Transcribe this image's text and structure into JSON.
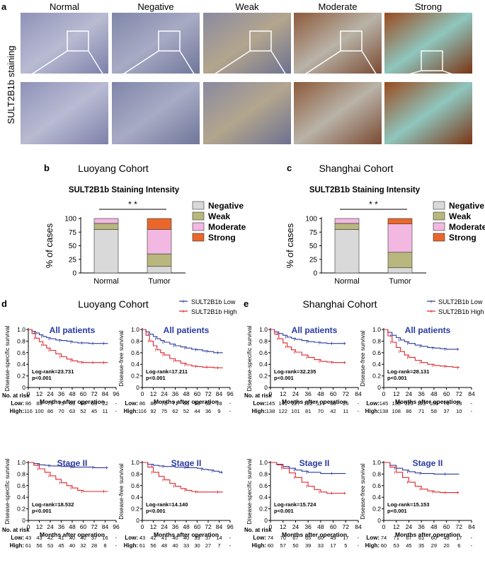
{
  "panel_a": {
    "letter": "a",
    "row_label": "SULT2B1b staining",
    "columns": [
      "Normal",
      "Negative",
      "Weak",
      "Moderate",
      "Strong"
    ]
  },
  "legend_km": {
    "low": "SULT2B1b Low",
    "high": "SULT2B1b High"
  },
  "colors": {
    "negative": "#d9d9d9",
    "weak": "#b8b77d",
    "moderate": "#f2b8e2",
    "strong": "#e9672a",
    "low_line": "#2b3a9c",
    "high_line": "#e0262b",
    "km_title": "#2a3aa0"
  },
  "chart_data": [
    {
      "id": "b",
      "letter": "b",
      "type": "bar",
      "stacked": true,
      "cohort": "Luoyang Cohort",
      "title": "SULT2B1b Staining Intensity",
      "ylabel": "% of cases",
      "xlabel": "",
      "ylim": [
        0,
        100
      ],
      "yticks": [
        "0",
        "25",
        "50",
        "75",
        "100"
      ],
      "categories": [
        "Normal",
        "Tumor"
      ],
      "significance": "* *",
      "series": [
        {
          "name": "Negative",
          "values": [
            80,
            12
          ]
        },
        {
          "name": "Weak",
          "values": [
            11,
            23
          ]
        },
        {
          "name": "Moderate",
          "values": [
            9,
            45
          ]
        },
        {
          "name": "Strong",
          "values": [
            0,
            20
          ]
        }
      ]
    },
    {
      "id": "c",
      "letter": "c",
      "type": "bar",
      "stacked": true,
      "cohort": "Shanghai Cohort",
      "title": "SULT2B1b Staining Intensity",
      "ylabel": "% of cases",
      "xlabel": "",
      "ylim": [
        0,
        100
      ],
      "yticks": [
        "0",
        "25",
        "50",
        "75",
        "100"
      ],
      "categories": [
        "Normal",
        "Tumor"
      ],
      "significance": "* *",
      "series": [
        {
          "name": "Negative",
          "values": [
            80,
            10
          ]
        },
        {
          "name": "Weak",
          "values": [
            11,
            28
          ]
        },
        {
          "name": "Moderate",
          "values": [
            9,
            52
          ]
        },
        {
          "name": "Strong",
          "values": [
            0,
            10
          ]
        }
      ]
    },
    {
      "id": "d1",
      "type": "line",
      "subtitle": "All patients",
      "ylabel": "Disease-specific survival",
      "xlabel": "Months after operation",
      "xticks": [
        0,
        12,
        24,
        36,
        48,
        60,
        72,
        84,
        96
      ],
      "yticks": [
        0,
        0.2,
        0.4,
        0.6,
        0.8,
        1.0
      ],
      "logrank": "Log-rank=23.731",
      "pvalue": "p<0.001",
      "series": [
        {
          "name": "SULT2B1b Low",
          "x": [
            0,
            4,
            8,
            12,
            16,
            20,
            24,
            30,
            36,
            42,
            48,
            54,
            60,
            66,
            72,
            78,
            84,
            87
          ],
          "y": [
            1.0,
            0.97,
            0.94,
            0.91,
            0.88,
            0.86,
            0.84,
            0.82,
            0.81,
            0.8,
            0.78,
            0.77,
            0.77,
            0.76,
            0.76,
            0.76,
            0.76,
            0.76
          ]
        },
        {
          "name": "SULT2B1b High",
          "x": [
            0,
            4,
            8,
            12,
            16,
            20,
            24,
            30,
            36,
            42,
            48,
            54,
            60,
            66,
            72,
            78,
            84,
            87
          ],
          "y": [
            1.0,
            0.93,
            0.85,
            0.79,
            0.73,
            0.68,
            0.64,
            0.58,
            0.53,
            0.49,
            0.46,
            0.44,
            0.43,
            0.43,
            0.43,
            0.43,
            0.43,
            0.43
          ]
        }
      ]
    },
    {
      "id": "d2",
      "type": "line",
      "subtitle": "All patients",
      "ylabel": "Disease-free survival",
      "xlabel": "Months after operation",
      "xticks": [
        0,
        12,
        24,
        36,
        48,
        60,
        72,
        84,
        96
      ],
      "yticks": [
        0,
        0.2,
        0.4,
        0.6,
        0.8,
        1.0
      ],
      "logrank": "Log-rank=17.211",
      "pvalue": "p<0.001",
      "series": [
        {
          "name": "SULT2B1b Low",
          "x": [
            0,
            4,
            8,
            12,
            16,
            20,
            24,
            30,
            36,
            42,
            48,
            54,
            60,
            66,
            72,
            78,
            84,
            88
          ],
          "y": [
            1.0,
            0.96,
            0.92,
            0.88,
            0.84,
            0.81,
            0.78,
            0.75,
            0.72,
            0.7,
            0.68,
            0.66,
            0.65,
            0.63,
            0.62,
            0.6,
            0.6,
            0.6
          ]
        },
        {
          "name": "SULT2B1b High",
          "x": [
            0,
            4,
            8,
            12,
            16,
            20,
            24,
            30,
            36,
            42,
            48,
            54,
            60,
            66,
            72,
            78,
            84,
            88
          ],
          "y": [
            1.0,
            0.9,
            0.8,
            0.72,
            0.65,
            0.6,
            0.56,
            0.5,
            0.46,
            0.42,
            0.39,
            0.37,
            0.36,
            0.35,
            0.35,
            0.34,
            0.34,
            0.34
          ]
        }
      ]
    },
    {
      "id": "d3",
      "type": "line",
      "subtitle": "Stage II",
      "ylabel": "Disease-specific survival",
      "xlabel": "Months after operation",
      "xticks": [
        0,
        12,
        24,
        36,
        48,
        60,
        72,
        84,
        96
      ],
      "yticks": [
        0,
        0.2,
        0.4,
        0.6,
        0.8,
        1.0
      ],
      "logrank": "Log-rank=18.532",
      "pvalue": "p<0.001",
      "series": [
        {
          "name": "SULT2B1b Low",
          "x": [
            0,
            6,
            12,
            18,
            24,
            36,
            48,
            60,
            72,
            84,
            87
          ],
          "y": [
            1.0,
            0.98,
            0.96,
            0.95,
            0.94,
            0.93,
            0.92,
            0.92,
            0.91,
            0.91,
            0.91
          ]
        },
        {
          "name": "SULT2B1b High",
          "x": [
            0,
            6,
            12,
            18,
            24,
            30,
            36,
            42,
            48,
            54,
            60,
            72,
            84,
            87
          ],
          "y": [
            1.0,
            0.95,
            0.89,
            0.83,
            0.77,
            0.71,
            0.65,
            0.6,
            0.56,
            0.52,
            0.5,
            0.5,
            0.5,
            0.5
          ]
        }
      ]
    },
    {
      "id": "d4",
      "type": "line",
      "subtitle": "Stage II",
      "ylabel": "Disease-free survival",
      "xlabel": "Months after operation",
      "xticks": [
        0,
        12,
        24,
        36,
        48,
        60,
        72,
        84,
        96
      ],
      "yticks": [
        0,
        0.2,
        0.4,
        0.6,
        0.8,
        1.0
      ],
      "logrank": "Log-rank=14.140",
      "pvalue": "p<0.001",
      "series": [
        {
          "name": "SULT2B1b Low",
          "x": [
            0,
            6,
            12,
            18,
            24,
            36,
            48,
            60,
            66,
            72,
            78,
            84,
            88
          ],
          "y": [
            1.0,
            0.97,
            0.95,
            0.94,
            0.93,
            0.92,
            0.91,
            0.9,
            0.88,
            0.87,
            0.85,
            0.83,
            0.83
          ]
        },
        {
          "name": "SULT2B1b High",
          "x": [
            0,
            6,
            12,
            18,
            24,
            30,
            36,
            42,
            48,
            54,
            60,
            72,
            84,
            88
          ],
          "y": [
            1.0,
            0.92,
            0.83,
            0.76,
            0.7,
            0.64,
            0.59,
            0.55,
            0.52,
            0.5,
            0.49,
            0.49,
            0.49,
            0.49
          ]
        }
      ]
    },
    {
      "id": "e1",
      "type": "line",
      "subtitle": "All patients",
      "ylabel": "Disease-specific survival",
      "xlabel": "Months after operation",
      "xticks": [
        0,
        12,
        24,
        36,
        48,
        60,
        72,
        84
      ],
      "yticks": [
        0,
        0.2,
        0.4,
        0.6,
        0.8,
        1.0
      ],
      "logrank": "Log-rank=32.235",
      "pvalue": "p<0.001",
      "series": [
        {
          "name": "SULT2B1b Low",
          "x": [
            0,
            4,
            8,
            12,
            16,
            20,
            24,
            30,
            36,
            42,
            48,
            54,
            60,
            66,
            72
          ],
          "y": [
            1.0,
            0.96,
            0.93,
            0.9,
            0.87,
            0.85,
            0.83,
            0.81,
            0.79,
            0.78,
            0.77,
            0.76,
            0.76,
            0.76,
            0.76
          ]
        },
        {
          "name": "SULT2B1b High",
          "x": [
            0,
            4,
            8,
            12,
            16,
            20,
            24,
            30,
            36,
            42,
            48,
            54,
            60,
            66,
            72
          ],
          "y": [
            1.0,
            0.92,
            0.84,
            0.77,
            0.7,
            0.65,
            0.61,
            0.56,
            0.52,
            0.48,
            0.45,
            0.44,
            0.43,
            0.43,
            0.43
          ]
        }
      ]
    },
    {
      "id": "e2",
      "type": "line",
      "subtitle": "All patients",
      "ylabel": "Disease-free survival",
      "xlabel": "Months after operation",
      "xticks": [
        0,
        12,
        24,
        36,
        48,
        60,
        72,
        84
      ],
      "yticks": [
        0,
        0.2,
        0.4,
        0.6,
        0.8,
        1.0
      ],
      "logrank": "Log-rank=28.131",
      "pvalue": "p<0.001",
      "series": [
        {
          "name": "SULT2B1b Low",
          "x": [
            0,
            4,
            8,
            12,
            16,
            20,
            24,
            30,
            36,
            42,
            48,
            54,
            60,
            66,
            72
          ],
          "y": [
            1.0,
            0.95,
            0.9,
            0.86,
            0.82,
            0.79,
            0.76,
            0.73,
            0.71,
            0.69,
            0.68,
            0.67,
            0.66,
            0.66,
            0.66
          ]
        },
        {
          "name": "SULT2B1b High",
          "x": [
            0,
            4,
            8,
            12,
            16,
            20,
            24,
            30,
            36,
            42,
            48,
            54,
            60,
            66,
            72
          ],
          "y": [
            1.0,
            0.89,
            0.78,
            0.69,
            0.62,
            0.56,
            0.52,
            0.47,
            0.43,
            0.4,
            0.38,
            0.37,
            0.36,
            0.35,
            0.34
          ]
        }
      ]
    },
    {
      "id": "e3",
      "type": "line",
      "subtitle": "Stage II",
      "ylabel": "Disease-specific survival",
      "xlabel": "Months after operation",
      "xticks": [
        0,
        12,
        24,
        36,
        48,
        60,
        72,
        84
      ],
      "yticks": [
        0,
        0.2,
        0.4,
        0.6,
        0.8,
        1.0
      ],
      "logrank": "Log-rank=15.724",
      "pvalue": "p<0.001",
      "series": [
        {
          "name": "SULT2B1b Low",
          "x": [
            0,
            6,
            12,
            18,
            24,
            30,
            36,
            48,
            60,
            72
          ],
          "y": [
            1.0,
            0.97,
            0.93,
            0.9,
            0.87,
            0.85,
            0.83,
            0.81,
            0.81,
            0.81
          ]
        },
        {
          "name": "SULT2B1b High",
          "x": [
            0,
            6,
            12,
            18,
            24,
            30,
            36,
            42,
            48,
            54,
            60,
            66,
            72
          ],
          "y": [
            1.0,
            0.96,
            0.9,
            0.82,
            0.74,
            0.66,
            0.59,
            0.53,
            0.49,
            0.47,
            0.47,
            0.47,
            0.47
          ]
        }
      ]
    },
    {
      "id": "e4",
      "type": "line",
      "subtitle": "Stage II",
      "ylabel": "Disease-free survival",
      "xlabel": "Months after operation",
      "xticks": [
        0,
        12,
        24,
        36,
        48,
        60,
        72,
        84
      ],
      "yticks": [
        0,
        0.2,
        0.4,
        0.6,
        0.8,
        1.0
      ],
      "logrank": "Log-rank=15.153",
      "pvalue": "p<0.001",
      "series": [
        {
          "name": "SULT2B1b Low",
          "x": [
            0,
            6,
            12,
            18,
            24,
            30,
            36,
            48,
            60,
            72
          ],
          "y": [
            1.0,
            0.95,
            0.9,
            0.87,
            0.84,
            0.82,
            0.81,
            0.8,
            0.8,
            0.8
          ]
        },
        {
          "name": "SULT2B1b High",
          "x": [
            0,
            6,
            12,
            18,
            24,
            30,
            36,
            42,
            48,
            54,
            60,
            66,
            72
          ],
          "y": [
            1.0,
            0.92,
            0.83,
            0.74,
            0.66,
            0.59,
            0.54,
            0.51,
            0.49,
            0.48,
            0.48,
            0.48,
            0.48
          ]
        }
      ]
    }
  ],
  "panel_d": {
    "letter": "d",
    "cohort": "Luoyang Cohort"
  },
  "panel_e": {
    "letter": "e",
    "cohort": "Shanghai Cohort"
  },
  "risk_tables": {
    "header": "No. at risk",
    "d1": {
      "low": [
        "86",
        "83",
        "79",
        "75",
        "69",
        "68",
        "63",
        "22",
        "-"
      ],
      "high": [
        "116",
        "100",
        "86",
        "70",
        "63",
        "52",
        "45",
        "11",
        "-"
      ]
    },
    "d2": {
      "low": [
        "86",
        "80",
        "76",
        "71",
        "66",
        "58",
        "52",
        "18",
        "-"
      ],
      "high": [
        "116",
        "92",
        "75",
        "62",
        "52",
        "44",
        "36",
        "9",
        "-"
      ]
    },
    "d3": {
      "low": [
        "43",
        "43",
        "42",
        "41",
        "40",
        "40",
        "37",
        "16",
        "-"
      ],
      "high": [
        "61",
        "56",
        "53",
        "45",
        "40",
        "32",
        "28",
        "8",
        "-"
      ]
    },
    "d4": {
      "low": [
        "43",
        "42",
        "41",
        "40",
        "40",
        "39",
        "37",
        "14",
        "-"
      ],
      "high": [
        "61",
        "56",
        "48",
        "40",
        "33",
        "30",
        "27",
        "7",
        "-"
      ]
    },
    "e1": {
      "low": [
        "145",
        "141",
        "127",
        "122",
        "117",
        "88",
        "25",
        "-"
      ],
      "high": [
        "138",
        "122",
        "101",
        "81",
        "70",
        "42",
        "11",
        "-"
      ]
    },
    "e2": {
      "low": [
        "145",
        "130",
        "123",
        "113",
        "106",
        "78",
        "23",
        "-"
      ],
      "high": [
        "138",
        "108",
        "86",
        "71",
        "58",
        "37",
        "10",
        "-"
      ]
    },
    "e3": {
      "low": [
        "74",
        "70",
        "67",
        "65",
        "60",
        "49",
        "17",
        "-"
      ],
      "high": [
        "60",
        "57",
        "50",
        "39",
        "33",
        "17",
        "5",
        "-"
      ]
    },
    "e4": {
      "low": [
        "74",
        "71",
        "67",
        "61",
        "60",
        "49",
        "17",
        "-"
      ],
      "high": [
        "60",
        "53",
        "45",
        "35",
        "29",
        "20",
        "6",
        "-"
      ]
    },
    "low_label": "Low:",
    "high_label": "High:"
  }
}
